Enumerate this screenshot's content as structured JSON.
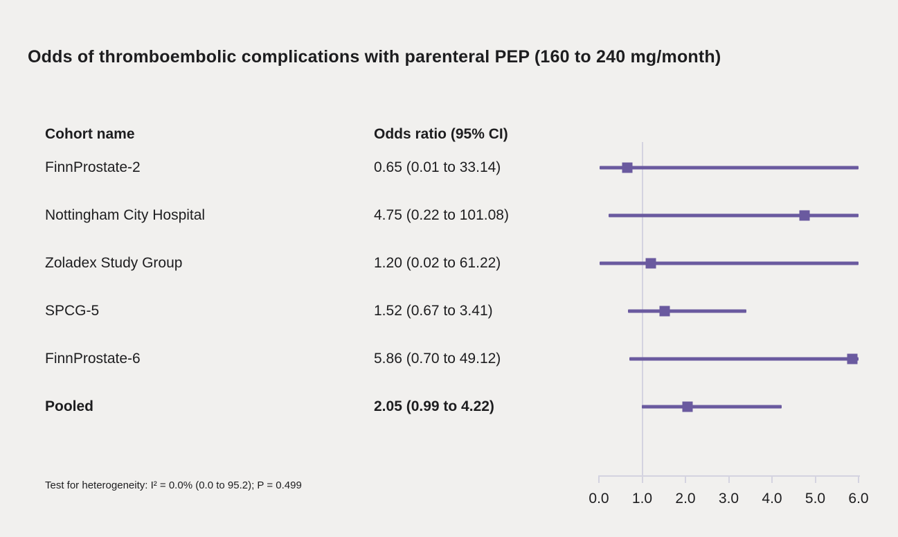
{
  "title": "Odds of thromboembolic complications with parenteral PEP (160 to 240 mg/month)",
  "columns": {
    "cohort": "Cohort name",
    "odds_ratio": "Odds ratio (95% CI)"
  },
  "footnote": "Test for heterogeneity: I² = 0.0% (0.0 to 95.2); P = 0.499",
  "colors": {
    "accent": "#6a5a9f",
    "axis": "#d4d3e0",
    "background": "#f1f0ee",
    "text": "#1d1d1f"
  },
  "chart_data": {
    "type": "forest",
    "title": "Odds of thromboembolic complications with parenteral PEP (160 to 240 mg/month)",
    "xlim": [
      0,
      6
    ],
    "x_tick_labels": [
      "0.0",
      "1.0",
      "2.0",
      "3.0",
      "4.0",
      "5.0",
      "6.0"
    ],
    "x_tick_values": [
      0,
      1,
      2,
      3,
      4,
      5,
      6
    ],
    "reference_line": 1.0,
    "rows": [
      {
        "cohort": "FinnProstate-2",
        "label": "0.65 (0.01 to 33.14)",
        "estimate": 0.65,
        "ci_low": 0.01,
        "ci_high": 33.14,
        "bold": false
      },
      {
        "cohort": "Nottingham City Hospital",
        "label": "4.75 (0.22 to 101.08)",
        "estimate": 4.75,
        "ci_low": 0.22,
        "ci_high": 101.08,
        "bold": false
      },
      {
        "cohort": "Zoladex Study Group",
        "label": "1.20 (0.02 to 61.22)",
        "estimate": 1.2,
        "ci_low": 0.02,
        "ci_high": 61.22,
        "bold": false
      },
      {
        "cohort": "SPCG-5",
        "label": "1.52 (0.67 to 3.41)",
        "estimate": 1.52,
        "ci_low": 0.67,
        "ci_high": 3.41,
        "bold": false
      },
      {
        "cohort": "FinnProstate-6",
        "label": "5.86 (0.70 to 49.12)",
        "estimate": 5.86,
        "ci_low": 0.7,
        "ci_high": 49.12,
        "bold": false
      },
      {
        "cohort": "Pooled",
        "label": "2.05 (0.99 to 4.22)",
        "estimate": 2.05,
        "ci_low": 0.99,
        "ci_high": 4.22,
        "bold": true
      }
    ]
  }
}
